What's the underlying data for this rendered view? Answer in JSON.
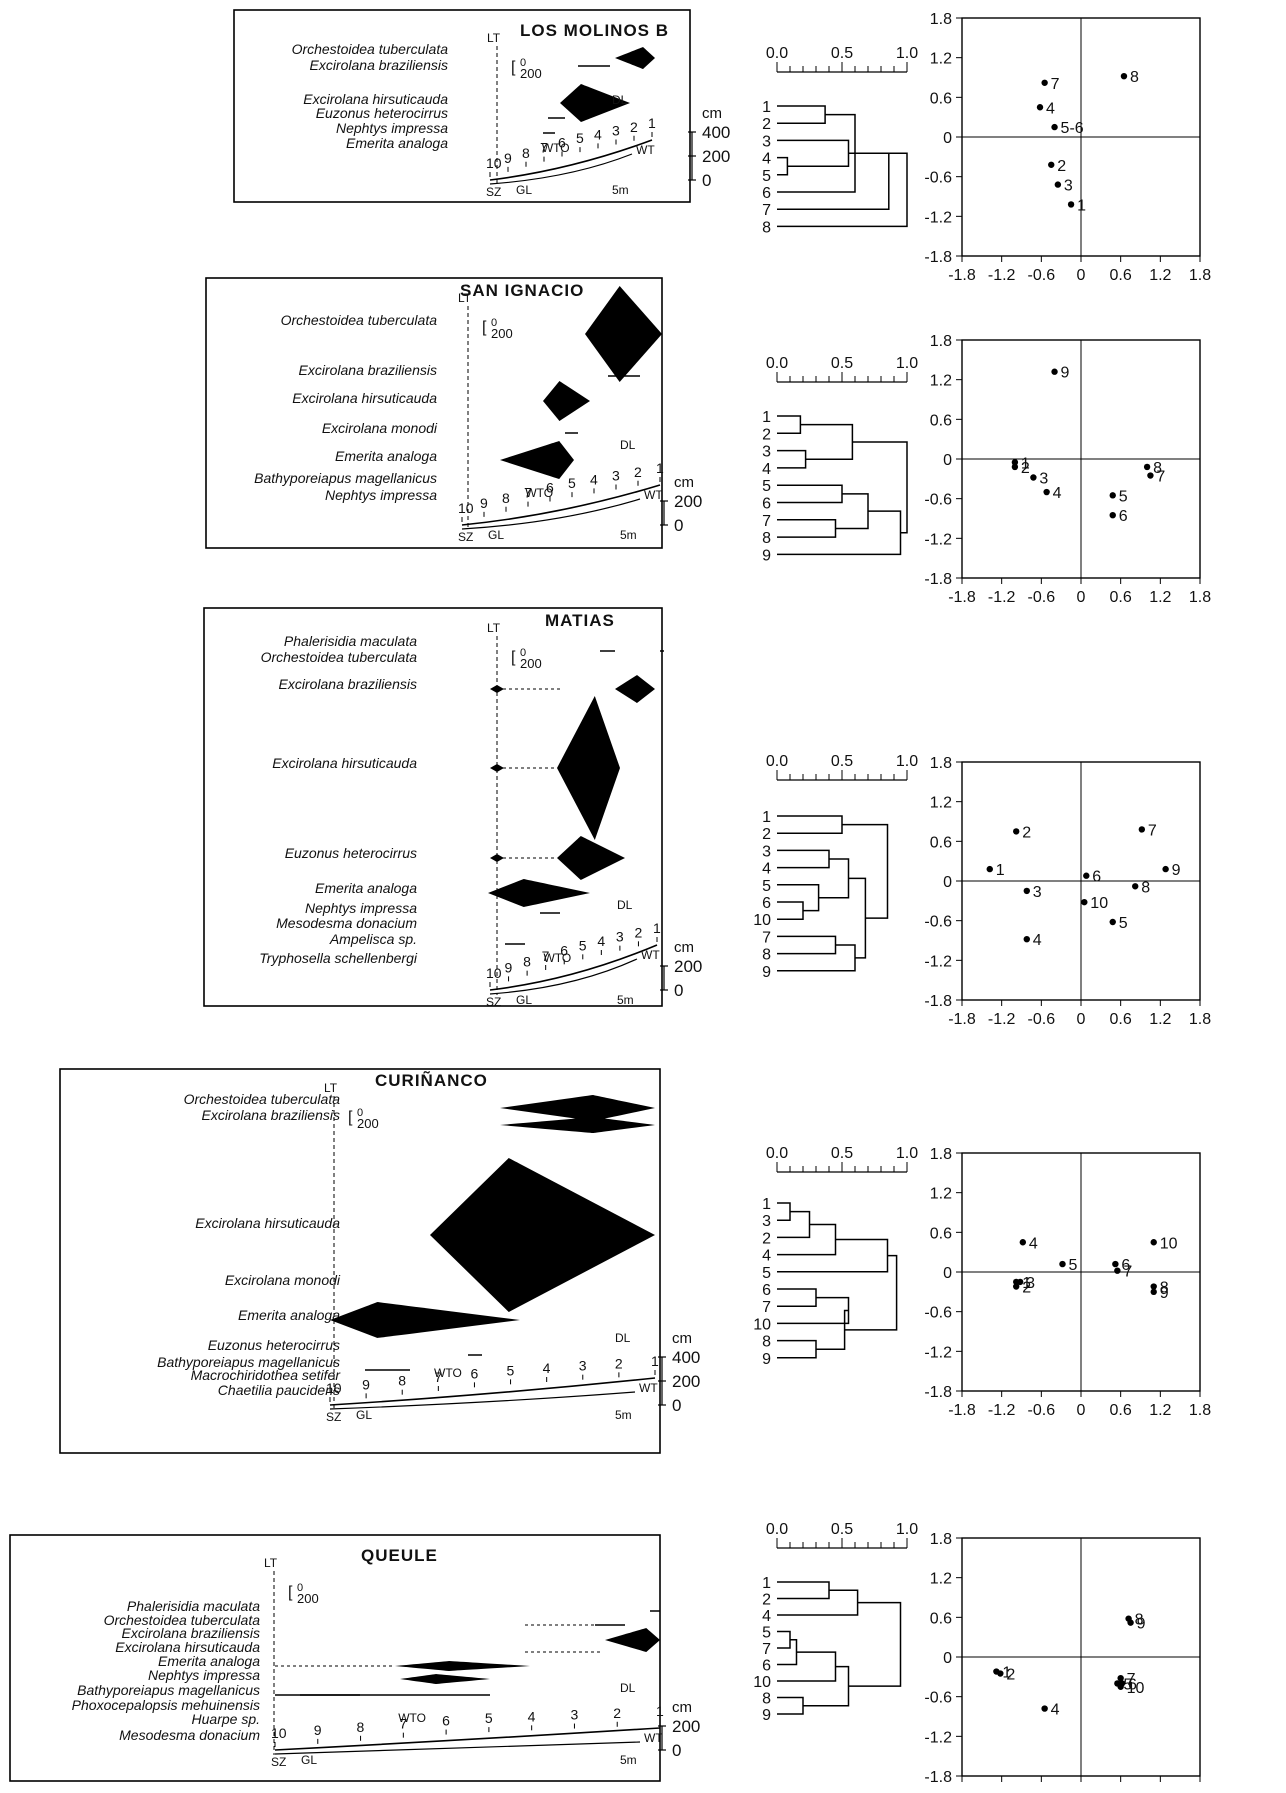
{
  "sites": [
    {
      "name": "LOS MOLINOS B",
      "profile": {
        "species": [
          "Orchestoidea tuberculata",
          "Excirolana braziliensis",
          "Excirolana hirsuticauda",
          "Euzonus heterocirrus",
          "Nephtys impressa",
          "Emerita analoga"
        ],
        "levels": [
          "1",
          "2",
          "3",
          "4",
          "5",
          "6",
          "7",
          "8",
          "9",
          "10"
        ],
        "markers": {
          "lt": "LT",
          "dl": "DL",
          "wto": "WTO",
          "wt": "WT",
          "sz": "SZ",
          "gl": "GL"
        },
        "scale": [
          "0",
          "200"
        ],
        "height_unit": "cm",
        "height_ticks": [
          "400",
          "200",
          "0"
        ],
        "distance_scale": "5m"
      },
      "dendrogram": {
        "axis_ticks": [
          "0.0",
          "0.5",
          "1.0"
        ],
        "leaves": [
          "1",
          "2",
          "3",
          "4",
          "5",
          "6",
          "7",
          "8"
        ]
      },
      "ordination": {
        "axis_ticks": [
          "-1.8",
          "-1.2",
          "-0.6",
          "0",
          "0.6",
          "1.2",
          "1.8"
        ],
        "points": [
          {
            "label": "1",
            "x": -0.15,
            "y": -1.02
          },
          {
            "label": "2",
            "x": -0.45,
            "y": -0.42
          },
          {
            "label": "3",
            "x": -0.35,
            "y": -0.72
          },
          {
            "label": "4",
            "x": -0.62,
            "y": 0.45
          },
          {
            "label": "5-6",
            "x": -0.4,
            "y": 0.15
          },
          {
            "label": "7",
            "x": -0.55,
            "y": 0.82
          },
          {
            "label": "8",
            "x": 0.65,
            "y": 0.92
          }
        ]
      }
    },
    {
      "name": "SAN IGNACIO",
      "profile": {
        "species": [
          "Orchestoidea tuberculata",
          "Excirolana braziliensis",
          "Excirolana hirsuticauda",
          "Excirolana monodi",
          "Emerita analoga",
          "Bathyporeiapus magellanicus",
          "Nephtys impressa"
        ],
        "levels": [
          "1",
          "2",
          "3",
          "4",
          "5",
          "6",
          "7",
          "8",
          "9",
          "10"
        ],
        "markers": {
          "lt": "LT",
          "dl": "DL",
          "wto": "WTO",
          "wt": "WT",
          "sz": "SZ",
          "gl": "GL"
        },
        "scale": [
          "0",
          "200"
        ],
        "height_unit": "cm",
        "height_ticks": [
          "200",
          "0"
        ],
        "distance_scale": "5m"
      },
      "dendrogram": {
        "axis_ticks": [
          "0.0",
          "0.5",
          "1.0"
        ],
        "leaves": [
          "1",
          "2",
          "3",
          "4",
          "5",
          "6",
          "7",
          "8",
          "9"
        ]
      },
      "ordination": {
        "axis_ticks": [
          "-1.8",
          "-1.2",
          "-0.6",
          "0",
          "0.6",
          "1.2",
          "1.8"
        ],
        "points": [
          {
            "label": "1",
            "x": -1.0,
            "y": -0.05
          },
          {
            "label": "2",
            "x": -1.0,
            "y": -0.12
          },
          {
            "label": "3",
            "x": -0.72,
            "y": -0.28
          },
          {
            "label": "4",
            "x": -0.52,
            "y": -0.5
          },
          {
            "label": "5",
            "x": 0.48,
            "y": -0.55
          },
          {
            "label": "6",
            "x": 0.48,
            "y": -0.85
          },
          {
            "label": "7",
            "x": 1.05,
            "y": -0.25
          },
          {
            "label": "8",
            "x": 1.0,
            "y": -0.12
          },
          {
            "label": "9",
            "x": -0.4,
            "y": 1.32
          }
        ]
      }
    },
    {
      "name": "MATIAS",
      "profile": {
        "species": [
          "Phalerisidia maculata",
          "Orchestoidea tuberculata",
          "Excirolana braziliensis",
          "Excirolana hirsuticauda",
          "Euzonus heterocirrus",
          "Emerita analoga",
          "Nephtys impressa",
          "Mesodesma donacium",
          "Ampelisca sp.",
          "Tryphosella schellenbergi"
        ],
        "levels": [
          "1",
          "2",
          "3",
          "4",
          "5",
          "6",
          "7",
          "8",
          "9",
          "10"
        ],
        "markers": {
          "lt": "LT",
          "dl": "DL",
          "wto": "WTO",
          "wt": "WT",
          "sz": "SZ",
          "gl": "GL"
        },
        "scale": [
          "0",
          "200"
        ],
        "height_unit": "cm",
        "height_ticks": [
          "200",
          "0"
        ],
        "distance_scale": "5m"
      },
      "dendrogram": {
        "axis_ticks": [
          "0.0",
          "0.5",
          "1.0"
        ],
        "leaves": [
          "1",
          "2",
          "3",
          "4",
          "5",
          "6",
          "10",
          "7",
          "8",
          "9"
        ]
      },
      "ordination": {
        "axis_ticks": [
          "-1.8",
          "-1.2",
          "-0.6",
          "0",
          "0.6",
          "1.2",
          "1.8"
        ],
        "points": [
          {
            "label": "1",
            "x": -1.38,
            "y": 0.18
          },
          {
            "label": "2",
            "x": -0.98,
            "y": 0.75
          },
          {
            "label": "3",
            "x": -0.82,
            "y": -0.15
          },
          {
            "label": "4",
            "x": -0.82,
            "y": -0.88
          },
          {
            "label": "5",
            "x": 0.48,
            "y": -0.62
          },
          {
            "label": "6",
            "x": 0.08,
            "y": 0.08
          },
          {
            "label": "7",
            "x": 0.92,
            "y": 0.78
          },
          {
            "label": "8",
            "x": 0.82,
            "y": -0.08
          },
          {
            "label": "9",
            "x": 1.28,
            "y": 0.18
          },
          {
            "label": "10",
            "x": 0.05,
            "y": -0.32
          }
        ]
      }
    },
    {
      "name": "CURIÑANCO",
      "profile": {
        "species": [
          "Orchestoidea tuberculata",
          "Excirolana braziliensis",
          "Excirolana hirsuticauda",
          "Excirolana monodi",
          "Emerita analoga",
          "Euzonus heterocirrus",
          "Bathyporeiapus magellanicus",
          "Macrochiridothea setifer",
          "Chaetilia paucidens"
        ],
        "levels": [
          "1",
          "2",
          "3",
          "4",
          "5",
          "6",
          "7",
          "8",
          "9",
          "10"
        ],
        "markers": {
          "lt": "LT",
          "dl": "DL",
          "wto": "WTO",
          "wt": "WT",
          "sz": "SZ",
          "gl": "GL"
        },
        "scale": [
          "0",
          "200"
        ],
        "height_unit": "cm",
        "height_ticks": [
          "400",
          "200",
          "0"
        ],
        "distance_scale": "5m"
      },
      "dendrogram": {
        "axis_ticks": [
          "0.0",
          "0.5",
          "1.0"
        ],
        "leaves": [
          "1",
          "3",
          "2",
          "4",
          "5",
          "6",
          "7",
          "10",
          "8",
          "9"
        ]
      },
      "ordination": {
        "axis_ticks": [
          "-1.8",
          "-1.2",
          "-0.6",
          "0",
          "0.6",
          "1.2",
          "1.8"
        ],
        "points": [
          {
            "label": "1",
            "x": -0.98,
            "y": -0.15
          },
          {
            "label": "2",
            "x": -0.98,
            "y": -0.22
          },
          {
            "label": "3",
            "x": -0.92,
            "y": -0.15
          },
          {
            "label": "4",
            "x": -0.88,
            "y": 0.45
          },
          {
            "label": "5",
            "x": -0.28,
            "y": 0.12
          },
          {
            "label": "6",
            "x": 0.52,
            "y": 0.12
          },
          {
            "label": "7",
            "x": 0.55,
            "y": 0.02
          },
          {
            "label": "8",
            "x": 1.1,
            "y": -0.22
          },
          {
            "label": "9",
            "x": 1.1,
            "y": -0.3
          },
          {
            "label": "10",
            "x": 1.1,
            "y": 0.45
          }
        ]
      }
    },
    {
      "name": "QUEULE",
      "profile": {
        "species": [
          "Phalerisidia maculata",
          "Orchestoidea tuberculata",
          "Excirolana braziliensis",
          "Excirolana hirsuticauda",
          "Emerita analoga",
          "Nephtys impressa",
          "Bathyporeiapus magellanicus",
          "Phoxocepalopsis mehuinensis",
          "Huarpe sp.",
          "Mesodesma donacium"
        ],
        "levels": [
          "1",
          "2",
          "3",
          "4",
          "5",
          "6",
          "7",
          "8",
          "9",
          "10"
        ],
        "markers": {
          "lt": "LT",
          "dl": "DL",
          "wto": "WTO",
          "wt": "WT",
          "sz": "SZ",
          "gl": "GL"
        },
        "scale": [
          "0",
          "200"
        ],
        "height_unit": "cm",
        "height_ticks": [
          "200",
          "0"
        ],
        "distance_scale": "5m"
      },
      "dendrogram": {
        "axis_ticks": [
          "0.0",
          "0.5",
          "1.0"
        ],
        "leaves": [
          "1",
          "2",
          "4",
          "5",
          "7",
          "6",
          "10",
          "8",
          "9"
        ]
      },
      "ordination": {
        "axis_ticks": [
          "-1.8",
          "-1.2",
          "-0.6",
          "0",
          "0.6",
          "1.2",
          "1.8"
        ],
        "points": [
          {
            "label": "1",
            "x": -1.28,
            "y": -0.22
          },
          {
            "label": "2",
            "x": -1.22,
            "y": -0.25
          },
          {
            "label": "4",
            "x": -0.55,
            "y": -0.78
          },
          {
            "label": "5",
            "x": 0.55,
            "y": -0.4
          },
          {
            "label": "6",
            "x": 0.62,
            "y": -0.4
          },
          {
            "label": "7",
            "x": 0.6,
            "y": -0.32
          },
          {
            "label": "8",
            "x": 0.72,
            "y": 0.58
          },
          {
            "label": "9",
            "x": 0.75,
            "y": 0.52
          },
          {
            "label": "10",
            "x": 0.6,
            "y": -0.45
          }
        ]
      }
    }
  ],
  "chart_data": [
    {
      "type": "scatter",
      "site": "LOS MOLINOS B",
      "xlim": [
        -1.8,
        1.8
      ],
      "ylim": [
        -1.8,
        1.8
      ]
    },
    {
      "type": "scatter",
      "site": "SAN IGNACIO",
      "xlim": [
        -1.8,
        1.8
      ],
      "ylim": [
        -1.8,
        1.8
      ]
    },
    {
      "type": "scatter",
      "site": "MATIAS",
      "xlim": [
        -1.8,
        1.8
      ],
      "ylim": [
        -1.8,
        1.8
      ]
    },
    {
      "type": "scatter",
      "site": "CURIÑANCO",
      "xlim": [
        -1.8,
        1.8
      ],
      "ylim": [
        -1.8,
        1.8
      ]
    },
    {
      "type": "scatter",
      "site": "QUEULE",
      "xlim": [
        -1.8,
        1.8
      ],
      "ylim": [
        -1.8,
        1.8
      ]
    }
  ]
}
